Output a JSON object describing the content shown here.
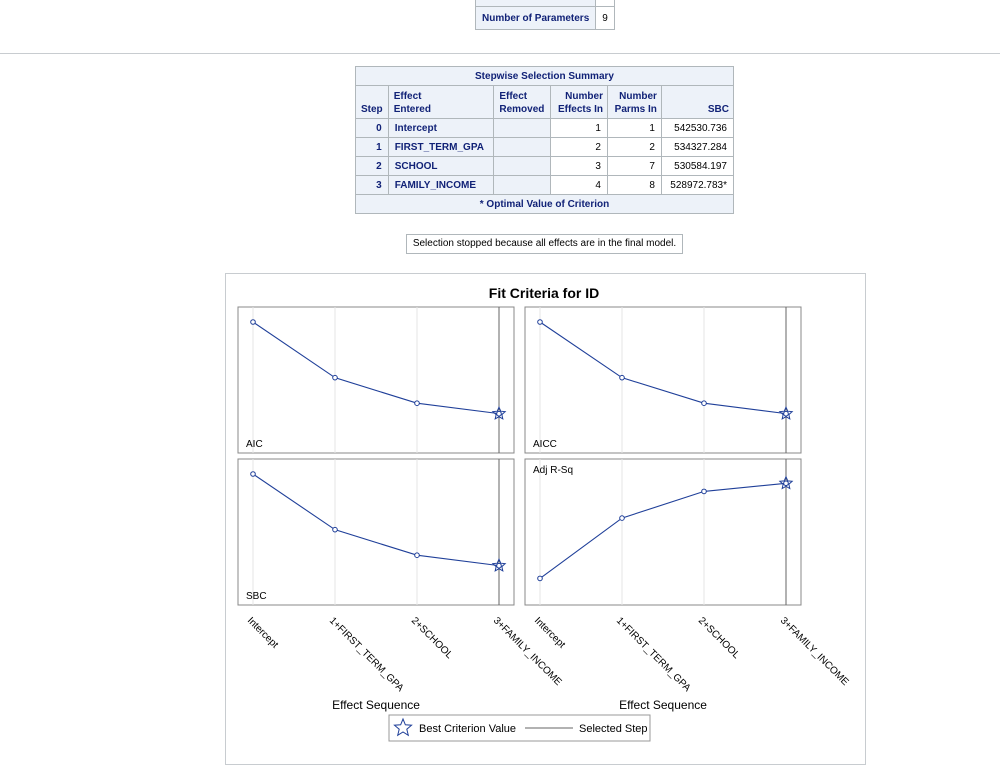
{
  "params_table": {
    "label": "Number of Parameters",
    "value": "9"
  },
  "stepwise": {
    "caption": "Stepwise Selection Summary",
    "headers": {
      "step": "Step",
      "effect_entered_1": "Effect",
      "effect_entered_2": "Entered",
      "effect_removed_1": "Effect",
      "effect_removed_2": "Removed",
      "num_effects_1": "Number",
      "num_effects_2": "Effects In",
      "num_parms_1": "Number",
      "num_parms_2": "Parms In",
      "sbc": "SBC"
    },
    "rows": [
      {
        "step": "0",
        "entered": "Intercept",
        "removed": "",
        "effects_in": "1",
        "parms_in": "1",
        "sbc": "542530.736"
      },
      {
        "step": "1",
        "entered": "FIRST_TERM_GPA",
        "removed": "",
        "effects_in": "2",
        "parms_in": "2",
        "sbc": "534327.284"
      },
      {
        "step": "2",
        "entered": "SCHOOL",
        "removed": "",
        "effects_in": "3",
        "parms_in": "7",
        "sbc": "530584.197"
      },
      {
        "step": "3",
        "entered": "FAMILY_INCOME",
        "removed": "",
        "effects_in": "4",
        "parms_in": "8",
        "sbc": "528972.783*"
      }
    ],
    "footnote": "* Optimal Value of Criterion"
  },
  "stop_note": "Selection stopped because all effects are in the final model.",
  "chart_data": {
    "type": "line",
    "title": "Fit Criteria for ID",
    "categories": [
      "Intercept",
      "1+FIRST_TERM_GPA",
      "2+SCHOOL",
      "3+FAMILY_INCOME"
    ],
    "xlabel": "Effect Sequence",
    "selected_step_index": 3,
    "panels": [
      {
        "name": "AIC",
        "values": [
          1.0,
          0.52,
          0.3,
          0.21
        ],
        "best_index": 3
      },
      {
        "name": "AICC",
        "values": [
          1.0,
          0.52,
          0.3,
          0.21
        ],
        "best_index": 3
      },
      {
        "name": "SBC",
        "values": [
          1.0,
          0.52,
          0.3,
          0.21
        ],
        "best_index": 3
      },
      {
        "name": "Adj R-Sq",
        "values": [
          0.1,
          0.62,
          0.85,
          0.92
        ],
        "best_index": 3
      }
    ],
    "legend": {
      "best_label": "Best Criterion Value",
      "selected_label": "Selected Step"
    },
    "line_color": "#1f3f99"
  }
}
